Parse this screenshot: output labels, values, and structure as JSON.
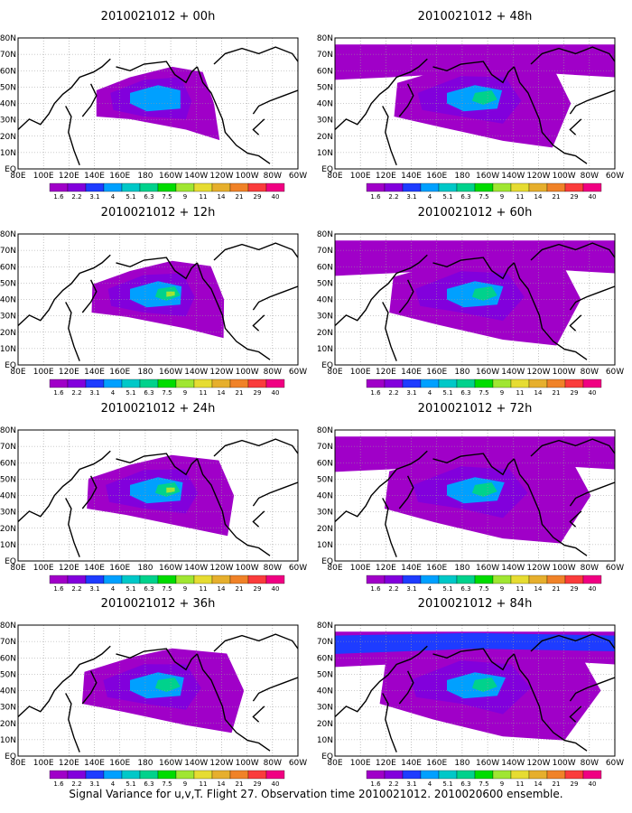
{
  "caption": "Signal Variance for u,v,T. Flight 27. Observation time 2010021012. 2010020600 ensemble.",
  "panels": [
    {
      "title": "2010021012 + 00h",
      "level": 0
    },
    {
      "title": "2010021012 + 48h",
      "level": 4
    },
    {
      "title": "2010021012 + 12h",
      "level": 1
    },
    {
      "title": "2010021012 + 60h",
      "level": 5
    },
    {
      "title": "2010021012 + 24h",
      "level": 2
    },
    {
      "title": "2010021012 + 72h",
      "level": 6
    },
    {
      "title": "2010021012 + 36h",
      "level": 3
    },
    {
      "title": "2010021012 + 84h",
      "level": 7
    }
  ],
  "map": {
    "lon_labels": [
      "80E",
      "100E",
      "120E",
      "140E",
      "160E",
      "180",
      "160W",
      "140W",
      "120W",
      "100W",
      "80W",
      "60W"
    ],
    "lat_labels": [
      "EQ",
      "10N",
      "20N",
      "30N",
      "40N",
      "50N",
      "60N",
      "70N",
      "80N"
    ]
  },
  "colorbar": {
    "labels": [
      "1.6",
      "2.2",
      "3.1",
      "4",
      "5.1",
      "6.3",
      "7.5",
      "9",
      "11",
      "14",
      "21",
      "29",
      "40"
    ],
    "colors": [
      "#a000c8",
      "#8200dc",
      "#1e3cff",
      "#00a0ff",
      "#00c8c8",
      "#00d28c",
      "#00dc00",
      "#a0e632",
      "#e6dc32",
      "#e6af2d",
      "#f08228",
      "#fa3c3c",
      "#f00082"
    ]
  }
}
